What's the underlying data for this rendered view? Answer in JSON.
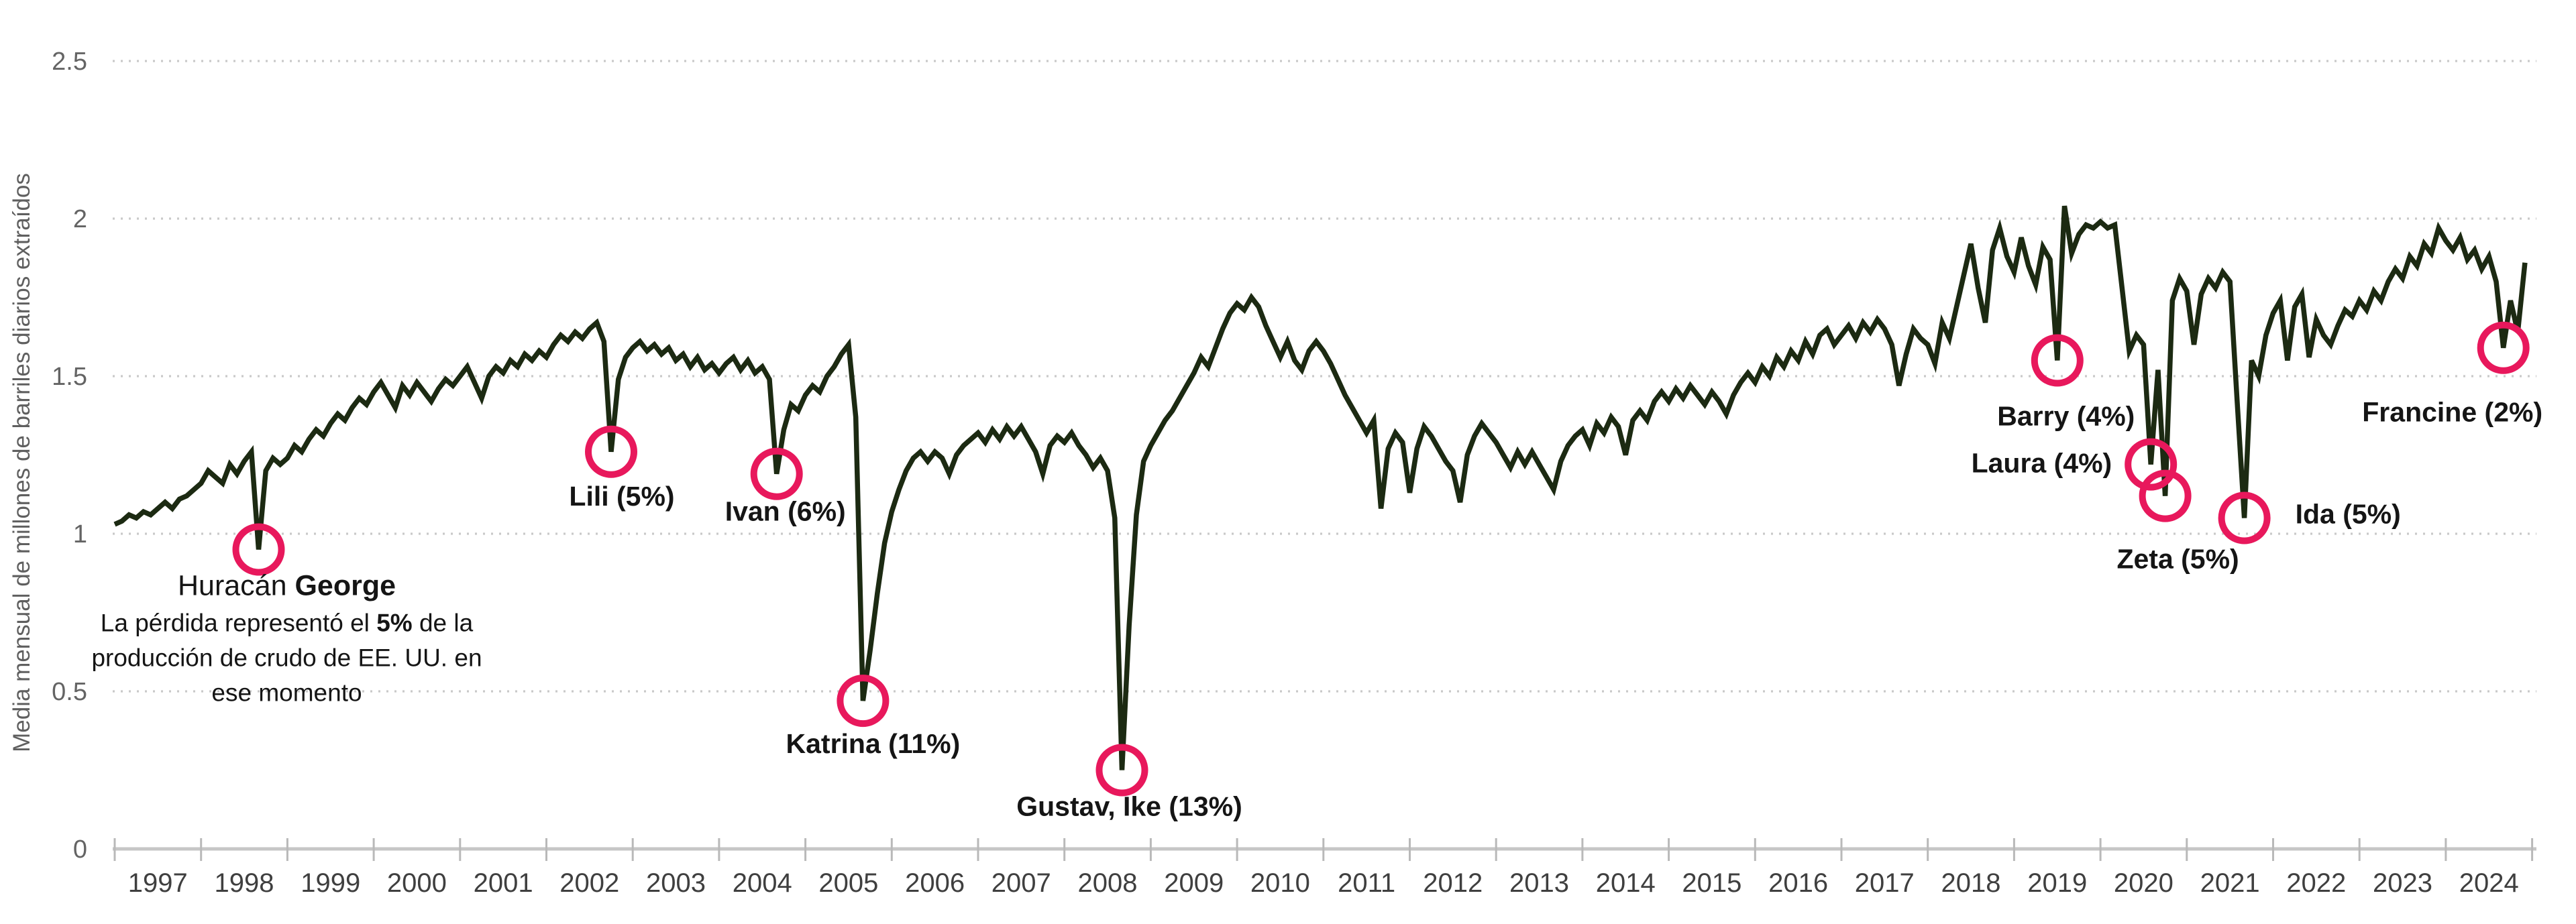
{
  "chart_data": {
    "type": "line",
    "title": "",
    "ylabel": "Media mensual de millones de barriles diarios extraídos",
    "xlabel": "",
    "x_start": "1997-01",
    "x_end": "2024-12",
    "x_tick_labels": [
      "1997",
      "1998",
      "1999",
      "2000",
      "2001",
      "2002",
      "2003",
      "2004",
      "2005",
      "2006",
      "2007",
      "2008",
      "2009",
      "2010",
      "2011",
      "2012",
      "2013",
      "2014",
      "2015",
      "2016",
      "2017",
      "2018",
      "2019",
      "2020",
      "2021",
      "2022",
      "2023",
      "2024"
    ],
    "y_tick_labels": [
      "0",
      "0.5",
      "1",
      "1.5",
      "2",
      "2.5"
    ],
    "y_tick_values": [
      0,
      0.5,
      1,
      1.5,
      2,
      2.5
    ],
    "ylim": [
      0,
      2.5
    ],
    "grid": "horizontal-dotted",
    "legend": "none",
    "series": [
      {
        "name": "Media mensual de millones de barriles diarios extraídos",
        "frequency": "monthly",
        "values": [
          1.03,
          1.04,
          1.06,
          1.05,
          1.07,
          1.06,
          1.08,
          1.1,
          1.08,
          1.11,
          1.12,
          1.14,
          1.16,
          1.2,
          1.18,
          1.16,
          1.22,
          1.19,
          1.23,
          1.26,
          0.95,
          1.2,
          1.24,
          1.22,
          1.24,
          1.28,
          1.26,
          1.3,
          1.33,
          1.31,
          1.35,
          1.38,
          1.36,
          1.4,
          1.43,
          1.41,
          1.45,
          1.48,
          1.44,
          1.4,
          1.47,
          1.44,
          1.48,
          1.45,
          1.42,
          1.46,
          1.49,
          1.47,
          1.5,
          1.53,
          1.48,
          1.43,
          1.5,
          1.53,
          1.51,
          1.55,
          1.53,
          1.57,
          1.55,
          1.58,
          1.56,
          1.6,
          1.63,
          1.61,
          1.64,
          1.62,
          1.65,
          1.67,
          1.61,
          1.26,
          1.49,
          1.56,
          1.59,
          1.61,
          1.58,
          1.6,
          1.57,
          1.59,
          1.55,
          1.57,
          1.53,
          1.56,
          1.52,
          1.54,
          1.51,
          1.54,
          1.56,
          1.52,
          1.55,
          1.51,
          1.53,
          1.49,
          1.19,
          1.33,
          1.41,
          1.39,
          1.44,
          1.47,
          1.45,
          1.5,
          1.53,
          1.57,
          1.6,
          1.37,
          0.47,
          0.63,
          0.81,
          0.97,
          1.07,
          1.14,
          1.2,
          1.24,
          1.26,
          1.23,
          1.26,
          1.24,
          1.19,
          1.25,
          1.28,
          1.3,
          1.32,
          1.29,
          1.33,
          1.3,
          1.34,
          1.31,
          1.34,
          1.3,
          1.26,
          1.19,
          1.28,
          1.31,
          1.29,
          1.32,
          1.28,
          1.25,
          1.21,
          1.24,
          1.2,
          1.05,
          0.25,
          0.71,
          1.06,
          1.23,
          1.28,
          1.32,
          1.36,
          1.39,
          1.43,
          1.47,
          1.51,
          1.56,
          1.53,
          1.59,
          1.65,
          1.7,
          1.73,
          1.71,
          1.75,
          1.72,
          1.66,
          1.61,
          1.56,
          1.61,
          1.55,
          1.52,
          1.58,
          1.61,
          1.58,
          1.54,
          1.49,
          1.44,
          1.4,
          1.36,
          1.32,
          1.36,
          1.08,
          1.27,
          1.32,
          1.29,
          1.13,
          1.27,
          1.34,
          1.31,
          1.27,
          1.23,
          1.2,
          1.1,
          1.25,
          1.31,
          1.35,
          1.32,
          1.29,
          1.25,
          1.21,
          1.26,
          1.22,
          1.26,
          1.22,
          1.18,
          1.14,
          1.23,
          1.28,
          1.31,
          1.33,
          1.28,
          1.35,
          1.32,
          1.37,
          1.34,
          1.25,
          1.36,
          1.39,
          1.36,
          1.42,
          1.45,
          1.42,
          1.46,
          1.43,
          1.47,
          1.44,
          1.41,
          1.45,
          1.42,
          1.38,
          1.44,
          1.48,
          1.51,
          1.48,
          1.53,
          1.5,
          1.56,
          1.53,
          1.58,
          1.55,
          1.61,
          1.57,
          1.63,
          1.65,
          1.6,
          1.63,
          1.66,
          1.62,
          1.67,
          1.64,
          1.68,
          1.65,
          1.6,
          1.47,
          1.57,
          1.65,
          1.62,
          1.6,
          1.54,
          1.67,
          1.62,
          1.72,
          1.82,
          1.92,
          1.78,
          1.67,
          1.9,
          1.97,
          1.88,
          1.83,
          1.94,
          1.85,
          1.79,
          1.91,
          1.87,
          1.55,
          2.04,
          1.89,
          1.95,
          1.98,
          1.97,
          1.99,
          1.97,
          1.98,
          1.78,
          1.58,
          1.63,
          1.6,
          1.22,
          1.52,
          1.12,
          1.74,
          1.81,
          1.77,
          1.6,
          1.76,
          1.81,
          1.78,
          1.83,
          1.8,
          1.42,
          1.05,
          1.55,
          1.5,
          1.63,
          1.7,
          1.74,
          1.55,
          1.72,
          1.76,
          1.56,
          1.68,
          1.63,
          1.6,
          1.66,
          1.71,
          1.69,
          1.74,
          1.71,
          1.77,
          1.74,
          1.8,
          1.84,
          1.81,
          1.88,
          1.85,
          1.92,
          1.89,
          1.97,
          1.93,
          1.9,
          1.94,
          1.87,
          1.9,
          1.84,
          1.88,
          1.8,
          1.59,
          1.74,
          1.64,
          1.86
        ]
      }
    ],
    "hurricane_annotations": [
      {
        "id": "george",
        "month": "1998-09",
        "value": 0.95,
        "heading_regular": "Huracán ",
        "heading_bold": "George",
        "body_lines": [
          {
            "segments": [
              {
                "t": "La pérdida representó el ",
                "b": false
              },
              {
                "t": "5%",
                "b": true
              },
              {
                "t": " de la",
                "b": false
              }
            ]
          },
          {
            "segments": [
              {
                "t": "producción de crudo de EE. UU. en",
                "b": false
              }
            ]
          },
          {
            "segments": [
              {
                "t": "ese momento",
                "b": false
              }
            ]
          }
        ]
      },
      {
        "id": "lili",
        "month": "2002-10",
        "value": 1.26,
        "label": "Lili (5%)"
      },
      {
        "id": "ivan",
        "month": "2004-09",
        "value": 1.19,
        "label": "Ivan (6%)"
      },
      {
        "id": "katrina",
        "month": "2005-09",
        "value": 0.47,
        "label": "Katrina (11%)"
      },
      {
        "id": "gustav-ike",
        "month": "2008-09",
        "value": 0.25,
        "label": "Gustav, Ike (13%)"
      },
      {
        "id": "barry",
        "month": "2019-07",
        "value": 1.55,
        "label": "Barry (4%)"
      },
      {
        "id": "laura",
        "month": "2020-08",
        "value": 1.22,
        "label": "Laura (4%)"
      },
      {
        "id": "zeta",
        "month": "2020-10",
        "value": 1.12,
        "label": "Zeta (5%)"
      },
      {
        "id": "ida",
        "month": "2021-09",
        "value": 1.05,
        "label": "Ida (5%)"
      },
      {
        "id": "francine",
        "month": "2024-09",
        "value": 1.59,
        "label": "Francine (2%)"
      }
    ]
  },
  "colors": {
    "background": "#ffffff",
    "line": "#1c2a12",
    "annotation_circle": "#e8185c",
    "gridline": "#c9c9c9",
    "axis_line": "#c6c6c6",
    "tick_mark": "#b9b9b9",
    "y_tick_label": "#646464",
    "x_tick_label": "#3f3f3f",
    "y_axis_title": "#5f5f5f",
    "annotation_text": "#151515"
  }
}
